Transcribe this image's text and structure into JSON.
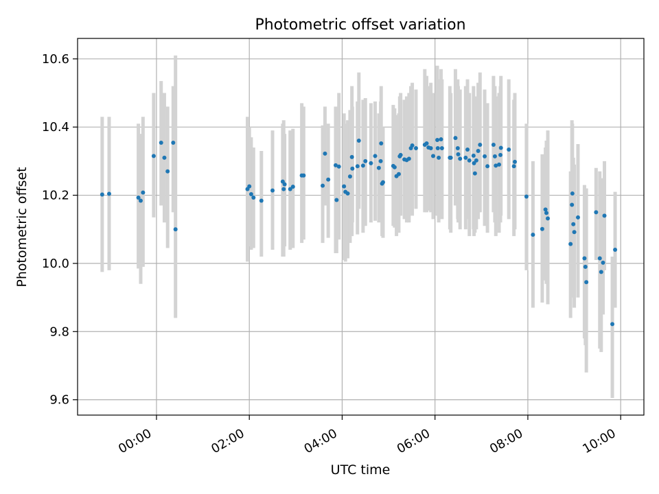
{
  "chart_data": {
    "type": "scatter",
    "title": "Photometric offset variation",
    "xlabel": "UTC time",
    "ylabel": "Photometric offset",
    "xlim_hours": [
      -1.7,
      10.5
    ],
    "ylim": [
      9.555,
      10.66
    ],
    "grid": true,
    "x_ticks": [
      {
        "value": 0,
        "label": "00:00"
      },
      {
        "value": 2,
        "label": "02:00"
      },
      {
        "value": 4,
        "label": "04:00"
      },
      {
        "value": 6,
        "label": "06:00"
      },
      {
        "value": 8,
        "label": "08:00"
      },
      {
        "value": 10,
        "label": "10:00"
      }
    ],
    "y_ticks": [
      {
        "value": 9.6,
        "label": "9.6"
      },
      {
        "value": 9.8,
        "label": "9.8"
      },
      {
        "value": 10.0,
        "label": "10.0"
      },
      {
        "value": 10.2,
        "label": "10.2"
      },
      {
        "value": 10.4,
        "label": "10.4"
      },
      {
        "value": 10.6,
        "label": "10.6"
      }
    ],
    "colors": {
      "points": "#1f77b4",
      "errorbars": "#d3d3d3",
      "grid": "#b0b0b0"
    },
    "points": [
      [
        -1.17,
        10.202,
        10.43,
        9.975
      ],
      [
        -1.02,
        10.204,
        10.43,
        9.98
      ],
      [
        -0.39,
        10.193,
        10.41,
        9.985
      ],
      [
        -0.34,
        10.184,
        10.38,
        9.94
      ],
      [
        -0.29,
        10.208,
        10.43,
        9.99
      ],
      [
        -0.06,
        10.315,
        10.5,
        10.135
      ],
      [
        0.1,
        10.354,
        10.535,
        10.17
      ],
      [
        0.17,
        10.31,
        10.5,
        10.12
      ],
      [
        0.24,
        10.27,
        10.46,
        10.045
      ],
      [
        0.36,
        10.354,
        10.52,
        10.15
      ],
      [
        0.41,
        10.1,
        10.61,
        9.84
      ],
      [
        1.96,
        10.218,
        10.43,
        10.005
      ],
      [
        2.0,
        10.226,
        10.4,
        10.05
      ],
      [
        2.04,
        10.203,
        10.37,
        10.04
      ],
      [
        2.09,
        10.193,
        10.34,
        10.045
      ],
      [
        2.26,
        10.184,
        10.33,
        10.02
      ],
      [
        2.5,
        10.214,
        10.39,
        10.04
      ],
      [
        2.72,
        10.24,
        10.41,
        10.02
      ],
      [
        2.74,
        10.218,
        10.42,
        10.02
      ],
      [
        2.76,
        10.232,
        10.38,
        10.05
      ],
      [
        2.88,
        10.218,
        10.39,
        10.04
      ],
      [
        2.94,
        10.225,
        10.395,
        10.045
      ],
      [
        3.13,
        10.258,
        10.47,
        10.06
      ],
      [
        3.17,
        10.258,
        10.46,
        10.07
      ],
      [
        3.58,
        10.228,
        10.405,
        10.06
      ],
      [
        3.63,
        10.322,
        10.46,
        10.17
      ],
      [
        3.7,
        10.246,
        10.41,
        10.075
      ],
      [
        3.86,
        10.288,
        10.46,
        10.03
      ],
      [
        3.88,
        10.186,
        10.395,
        10.03
      ],
      [
        3.93,
        10.284,
        10.5,
        10.07
      ],
      [
        4.04,
        10.226,
        10.44,
        10.01
      ],
      [
        4.07,
        10.21,
        10.41,
        10.005
      ],
      [
        4.12,
        10.205,
        10.42,
        10.015
      ],
      [
        4.17,
        10.255,
        10.45,
        10.06
      ],
      [
        4.21,
        10.312,
        10.52,
        10.08
      ],
      [
        4.22,
        10.278,
        10.46,
        10.12
      ],
      [
        4.33,
        10.285,
        10.475,
        10.085
      ],
      [
        4.36,
        10.36,
        10.56,
        10.16
      ],
      [
        4.45,
        10.287,
        10.48,
        10.09
      ],
      [
        4.5,
        10.3,
        10.485,
        10.11
      ],
      [
        4.62,
        10.294,
        10.47,
        10.12
      ],
      [
        4.71,
        10.315,
        10.475,
        10.125
      ],
      [
        4.79,
        10.28,
        10.44,
        10.12
      ],
      [
        4.83,
        10.3,
        10.475,
        10.13
      ],
      [
        4.84,
        10.352,
        10.52,
        10.17
      ],
      [
        4.86,
        10.234,
        10.39,
        10.08
      ],
      [
        4.88,
        10.238,
        10.4,
        10.075
      ],
      [
        5.1,
        10.286,
        10.465,
        10.11
      ],
      [
        5.13,
        10.282,
        10.455,
        10.105
      ],
      [
        5.17,
        10.256,
        10.435,
        10.08
      ],
      [
        5.22,
        10.262,
        10.44,
        10.09
      ],
      [
        5.24,
        10.314,
        10.49,
        10.14
      ],
      [
        5.26,
        10.318,
        10.5,
        10.14
      ],
      [
        5.34,
        10.305,
        10.48,
        10.13
      ],
      [
        5.39,
        10.303,
        10.49,
        10.12
      ],
      [
        5.44,
        10.307,
        10.5,
        10.12
      ],
      [
        5.48,
        10.338,
        10.52,
        10.15
      ],
      [
        5.51,
        10.346,
        10.53,
        10.14
      ],
      [
        5.59,
        10.338,
        10.51,
        10.16
      ],
      [
        5.78,
        10.348,
        10.57,
        10.15
      ],
      [
        5.82,
        10.352,
        10.55,
        10.15
      ],
      [
        5.86,
        10.34,
        10.52,
        10.155
      ],
      [
        5.91,
        10.338,
        10.53,
        10.15
      ],
      [
        5.96,
        10.315,
        10.5,
        10.13
      ],
      [
        6.05,
        10.362,
        10.58,
        10.14
      ],
      [
        6.06,
        10.338,
        10.54,
        10.14
      ],
      [
        6.08,
        10.31,
        10.5,
        10.12
      ],
      [
        6.13,
        10.364,
        10.57,
        10.15
      ],
      [
        6.15,
        10.338,
        10.54,
        10.13
      ],
      [
        6.32,
        10.31,
        10.52,
        10.1
      ],
      [
        6.34,
        10.31,
        10.5,
        10.09
      ],
      [
        6.44,
        10.368,
        10.57,
        10.17
      ],
      [
        6.49,
        10.338,
        10.54,
        10.13
      ],
      [
        6.5,
        10.32,
        10.52,
        10.12
      ],
      [
        6.54,
        10.307,
        10.51,
        10.1
      ],
      [
        6.66,
        10.31,
        10.52,
        10.1
      ],
      [
        6.7,
        10.334,
        10.54,
        10.13
      ],
      [
        6.74,
        10.302,
        10.5,
        10.08
      ],
      [
        6.83,
        10.316,
        10.52,
        10.1
      ],
      [
        6.84,
        10.294,
        10.48,
        10.08
      ],
      [
        6.86,
        10.264,
        10.46,
        10.09
      ],
      [
        6.89,
        10.302,
        10.49,
        10.1
      ],
      [
        6.93,
        10.33,
        10.53,
        10.13
      ],
      [
        6.97,
        10.348,
        10.56,
        10.15
      ],
      [
        7.07,
        10.314,
        10.51,
        10.11
      ],
      [
        7.13,
        10.285,
        10.47,
        10.09
      ],
      [
        7.26,
        10.348,
        10.55,
        10.15
      ],
      [
        7.29,
        10.314,
        10.52,
        10.12
      ],
      [
        7.31,
        10.287,
        10.49,
        10.08
      ],
      [
        7.38,
        10.29,
        10.5,
        10.09
      ],
      [
        7.41,
        10.318,
        10.52,
        10.12
      ],
      [
        7.42,
        10.339,
        10.55,
        10.14
      ],
      [
        7.59,
        10.334,
        10.54,
        10.13
      ],
      [
        7.7,
        10.285,
        10.48,
        10.08
      ],
      [
        7.72,
        10.298,
        10.5,
        10.1
      ],
      [
        7.97,
        10.196,
        10.41,
        9.98
      ],
      [
        8.11,
        10.084,
        10.3,
        9.87
      ],
      [
        8.31,
        10.101,
        10.32,
        9.885
      ],
      [
        8.38,
        10.158,
        10.34,
        9.95
      ],
      [
        8.4,
        10.148,
        10.36,
        9.94
      ],
      [
        8.43,
        10.132,
        10.39,
        9.88
      ],
      [
        8.92,
        10.057,
        10.27,
        9.84
      ],
      [
        8.95,
        10.172,
        10.42,
        9.93
      ],
      [
        8.96,
        10.205,
        10.41,
        9.97
      ],
      [
        8.98,
        10.115,
        10.31,
        9.9
      ],
      [
        9.0,
        10.092,
        10.29,
        9.87
      ],
      [
        9.08,
        10.135,
        10.35,
        9.9
      ],
      [
        9.22,
        10.015,
        10.23,
        9.78
      ],
      [
        9.24,
        9.99,
        10.2,
        9.76
      ],
      [
        9.26,
        9.945,
        10.22,
        9.68
      ],
      [
        9.47,
        10.15,
        10.28,
        10.01
      ],
      [
        9.55,
        10.015,
        10.27,
        9.75
      ],
      [
        9.58,
        9.975,
        10.25,
        9.74
      ],
      [
        9.62,
        10.002,
        10.22,
        9.85
      ],
      [
        9.65,
        10.14,
        10.3,
        9.98
      ],
      [
        9.82,
        9.822,
        10.02,
        9.605
      ],
      [
        9.88,
        10.04,
        10.21,
        9.87
      ]
    ]
  }
}
